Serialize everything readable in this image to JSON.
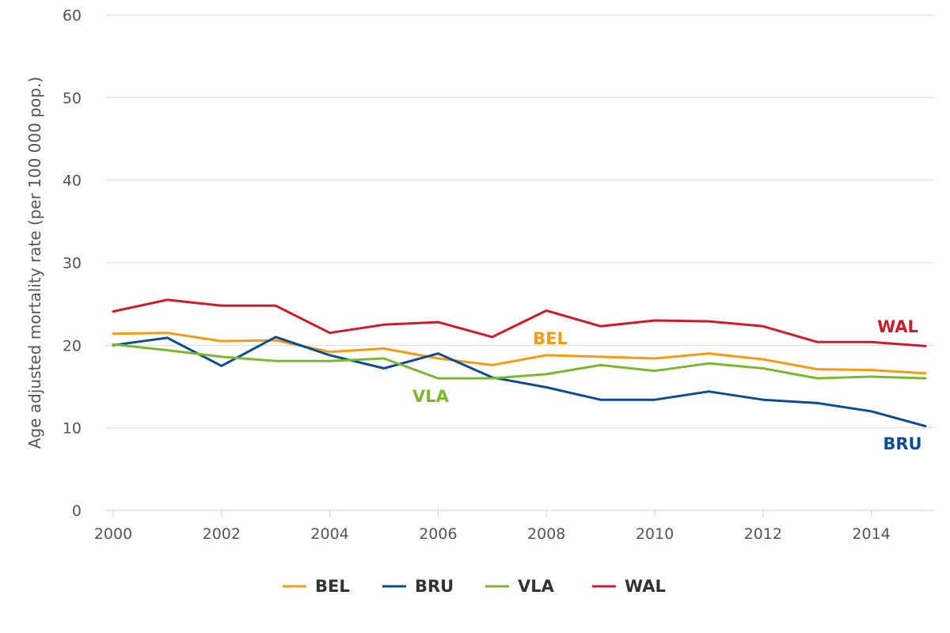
{
  "chart_data": {
    "type": "line",
    "ylabel": "Age adjusted mortality rate (per 100 000 pop.)",
    "xlabel": "",
    "ylim": [
      0,
      60
    ],
    "yticks": [
      0,
      10,
      20,
      30,
      40,
      50,
      60
    ],
    "xlim": [
      2000,
      2015
    ],
    "xticks": [
      2000,
      2002,
      2004,
      2006,
      2008,
      2010,
      2012,
      2014
    ],
    "x": [
      2000,
      2001,
      2002,
      2003,
      2004,
      2005,
      2006,
      2007,
      2008,
      2009,
      2010,
      2011,
      2012,
      2013,
      2014,
      2015
    ],
    "grid": "horizontal",
    "legend_position": "bottom",
    "series": [
      {
        "name": "BEL",
        "color": "#f39c12",
        "values": [
          21.4,
          21.5,
          20.5,
          20.6,
          19.2,
          19.6,
          18.4,
          17.6,
          18.8,
          18.6,
          18.4,
          19.0,
          18.3,
          17.1,
          17.0,
          16.6
        ]
      },
      {
        "name": "BRU",
        "color": "#0d4c92",
        "values": [
          20.0,
          20.9,
          17.5,
          21.0,
          18.8,
          17.2,
          19.0,
          16.1,
          14.9,
          13.4,
          13.4,
          14.4,
          13.4,
          13.0,
          12.0,
          10.2
        ]
      },
      {
        "name": "VLA",
        "color": "#7cb82f",
        "values": [
          20.1,
          19.4,
          18.6,
          18.1,
          18.1,
          18.4,
          16.0,
          16.0,
          16.5,
          17.6,
          16.9,
          17.8,
          17.2,
          16.0,
          16.2,
          16.0
        ]
      },
      {
        "name": "WAL",
        "color": "#cc1b2b",
        "values": [
          24.1,
          25.5,
          24.8,
          24.8,
          21.5,
          22.5,
          22.8,
          21.0,
          24.2,
          22.3,
          23.0,
          22.9,
          22.3,
          20.4,
          20.4,
          19.9
        ]
      }
    ],
    "annotations": [
      {
        "text": "BEL",
        "series": "BEL"
      },
      {
        "text": "BRU",
        "series": "BRU"
      },
      {
        "text": "VLA",
        "series": "VLA"
      },
      {
        "text": "WAL",
        "series": "WAL"
      }
    ]
  }
}
